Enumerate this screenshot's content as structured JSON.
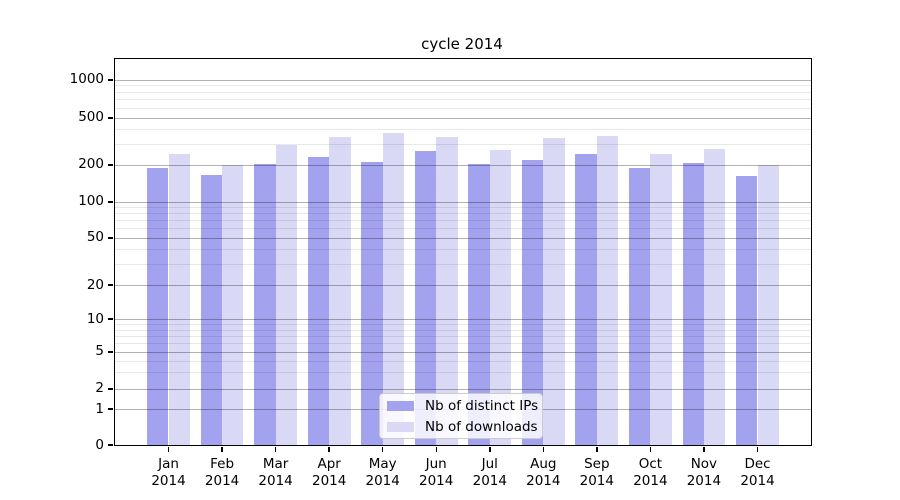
{
  "chart_data": {
    "type": "bar",
    "title": "cycle 2014",
    "categories": [
      "Jan 2014",
      "Feb 2014",
      "Mar 2014",
      "Apr 2014",
      "May 2014",
      "Jun 2014",
      "Jul 2014",
      "Aug 2014",
      "Sep 2014",
      "Oct 2014",
      "Nov 2014",
      "Dec 2014"
    ],
    "series": [
      {
        "name": "Nb of distinct IPs",
        "color": "#a2a2ef",
        "values": [
          187,
          164,
          202,
          232,
          210,
          262,
          201,
          220,
          248,
          186,
          207,
          163
        ]
      },
      {
        "name": "Nb of downloads",
        "color": "#d9d9f6",
        "values": [
          247,
          199,
          292,
          340,
          372,
          345,
          266,
          335,
          348,
          246,
          273,
          197
        ]
      }
    ],
    "xlabel": "",
    "ylabel": "",
    "yscale": "symlog",
    "y_ticks": [
      0,
      1,
      2,
      5,
      10,
      20,
      50,
      100,
      200,
      500,
      1000
    ],
    "minor_grid_values": [
      3,
      4,
      6,
      7,
      8,
      9,
      30,
      40,
      60,
      70,
      80,
      90,
      300,
      400,
      600,
      700,
      800,
      900
    ],
    "ylim": [
      0,
      1500
    ],
    "grid": true,
    "legend_position": "lower center"
  },
  "colors": {
    "background": "#ffffff",
    "axis": "#000000",
    "major_grid": "#b3b3b3",
    "minor_grid": "#e8e8e8",
    "text": "#000000",
    "legend_border": "#cbcbcb"
  }
}
